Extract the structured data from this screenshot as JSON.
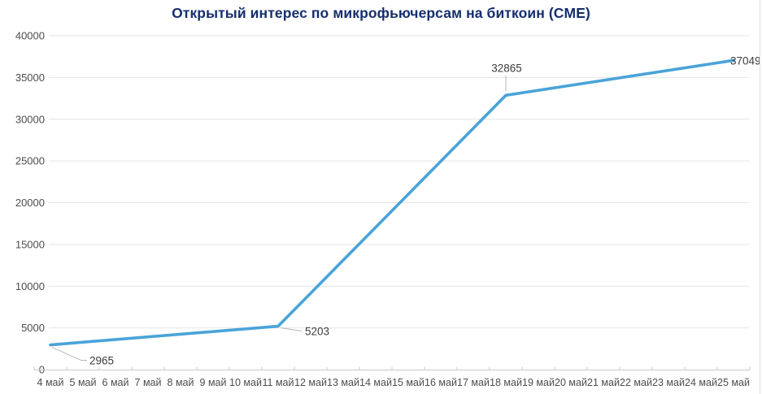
{
  "title": "Открытый интерес по микрофьючерсам на биткоин (CME)",
  "colors": {
    "title": "#152e6d",
    "line": "#4aa3d9",
    "grid": "#e4e4e4",
    "axis": "#c9c9c9",
    "tick_label": "#4d4d4d",
    "data_label": "#3b3b3b",
    "connector": "#b5b5b5",
    "background": "#ffffff",
    "frame_border": "#dedede"
  },
  "chart_data": {
    "type": "line",
    "title": "Открытый интерес по микрофьючерсам на биткоин (CME)",
    "categories": [
      "4 май",
      "5 май",
      "6 май",
      "7 май",
      "8 май",
      "9 май",
      "10 май",
      "11 май",
      "12 май",
      "13 май",
      "14 май",
      "15 май",
      "16 май",
      "17 май",
      "18 май",
      "19 май",
      "20 май",
      "21 май",
      "22 май",
      "23 май",
      "24 май",
      "25 май"
    ],
    "series": [
      {
        "name": "Открытый интерес",
        "points": [
          {
            "category": "4 май",
            "value": 2965
          },
          {
            "category": "11 май",
            "value": 5203
          },
          {
            "category": "18 май",
            "value": 32865
          },
          {
            "category": "25 май",
            "value": 37049
          }
        ]
      }
    ],
    "y_axis": {
      "min": 0,
      "max": 40000,
      "step": 5000,
      "tick_labels": [
        "0",
        "5000",
        "10000",
        "15000",
        "20000",
        "25000",
        "30000",
        "35000",
        "40000"
      ]
    },
    "x_axis_label_suffix": "май",
    "grid": true,
    "legend": false,
    "data_labels": [
      {
        "text": "2965",
        "category": "4 май",
        "placement": "below-right"
      },
      {
        "text": "5203",
        "category": "11 май",
        "placement": "right"
      },
      {
        "text": "32865",
        "category": "18 май",
        "placement": "above"
      },
      {
        "text": "37049",
        "category": "25 май",
        "placement": "end"
      }
    ]
  }
}
